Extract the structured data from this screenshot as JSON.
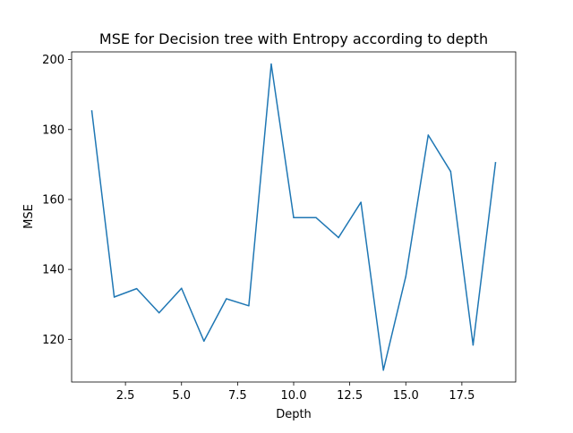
{
  "chart_data": {
    "type": "line",
    "title": "MSE for Decision tree with Entropy according to depth",
    "xlabel": "Depth",
    "ylabel": "MSE",
    "x": [
      1,
      2,
      3,
      4,
      5,
      6,
      7,
      8,
      9,
      10,
      11,
      12,
      13,
      14,
      15,
      16,
      17,
      18,
      19
    ],
    "series": [
      {
        "values": [
          185.3,
          132.1,
          134.5,
          127.6,
          134.6,
          119.5,
          131.6,
          129.6,
          198.7,
          154.8,
          154.8,
          149.1,
          159.2,
          111.2,
          138.0,
          178.4,
          168.0,
          118.4,
          170.5
        ]
      }
    ],
    "xlim": [
      0.1,
      19.9
    ],
    "ylim": [
      107.8,
      202.2
    ],
    "xticks": [
      2.5,
      5.0,
      7.5,
      10.0,
      12.5,
      15.0,
      17.5
    ],
    "xtick_labels": [
      "2.5",
      "5.0",
      "7.5",
      "10.0",
      "12.5",
      "15.0",
      "17.5"
    ],
    "yticks": [
      120,
      140,
      160,
      180,
      200
    ],
    "ytick_labels": [
      "120",
      "140",
      "160",
      "180",
      "200"
    ],
    "grid": false,
    "line_color": "#1f77b4"
  }
}
